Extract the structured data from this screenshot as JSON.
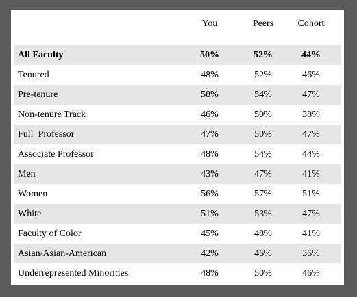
{
  "table": {
    "headers": [
      "You",
      "Peers",
      "Cohort"
    ],
    "rows": [
      {
        "label": "All Faculty",
        "you": "50%",
        "peers": "52%",
        "cohort": "44%"
      },
      {
        "label": "Tenured",
        "you": "48%",
        "peers": "52%",
        "cohort": "46%"
      },
      {
        "label": "Pre-tenure",
        "you": "58%",
        "peers": "54%",
        "cohort": "47%"
      },
      {
        "label": "Non-tenure Track",
        "you": "46%",
        "peers": "50%",
        "cohort": "38%"
      },
      {
        "label": "Full  Professor",
        "you": "47%",
        "peers": "50%",
        "cohort": "47%"
      },
      {
        "label": "Associate Professor",
        "you": "48%",
        "peers": "54%",
        "cohort": "44%"
      },
      {
        "label": "Men",
        "you": "43%",
        "peers": "47%",
        "cohort": "41%"
      },
      {
        "label": "Women",
        "you": "56%",
        "peers": "57%",
        "cohort": "51%"
      },
      {
        "label": "White",
        "you": "51%",
        "peers": "53%",
        "cohort": "47%"
      },
      {
        "label": "Faculty of Color",
        "you": "45%",
        "peers": "48%",
        "cohort": "41%"
      },
      {
        "label": "Asian/Asian-American",
        "you": "42%",
        "peers": "46%",
        "cohort": "36%"
      },
      {
        "label": "Underrepresented Minorities",
        "you": "48%",
        "peers": "50%",
        "cohort": "46%"
      }
    ]
  }
}
